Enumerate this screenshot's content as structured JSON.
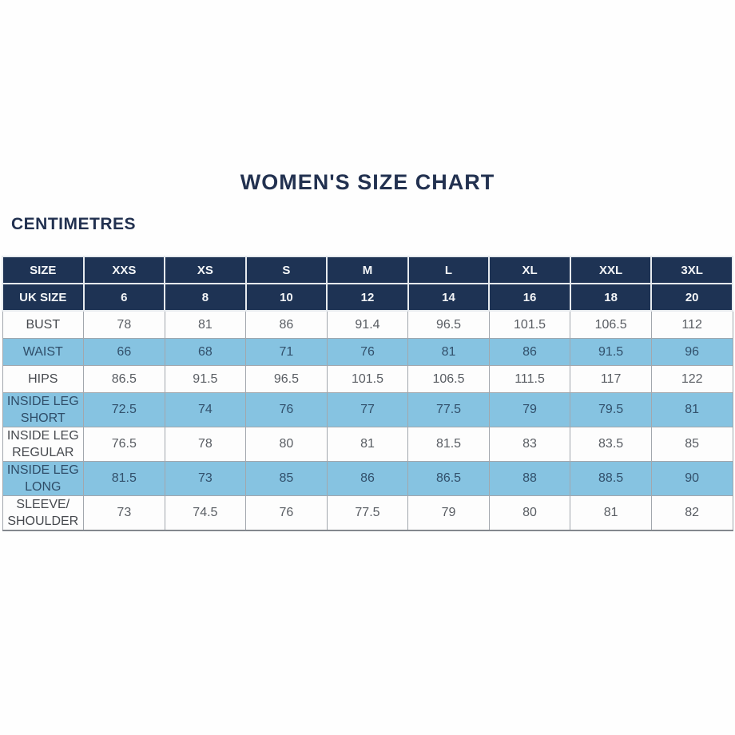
{
  "page": {
    "title": "WOMEN'S SIZE CHART",
    "unit_label": "CENTIMETRES"
  },
  "colors": {
    "header_navy": "#1e3354",
    "row_blue": "#86c3e1",
    "row_white": "#fdfdfd",
    "title_navy": "#223150",
    "border_gray": "#a2a7ad"
  },
  "chart_data": {
    "type": "table",
    "title": "WOMEN'S SIZE CHART",
    "unit": "CENTIMETRES",
    "columns": [
      "SIZE",
      "XXS",
      "XS",
      "S",
      "M",
      "L",
      "XL",
      "XXL",
      "3XL"
    ],
    "header_rows": [
      {
        "label": "SIZE",
        "values": [
          "XXS",
          "XS",
          "S",
          "M",
          "L",
          "XL",
          "XXL",
          "3XL"
        ]
      },
      {
        "label": "UK SIZE",
        "values": [
          "6",
          "8",
          "10",
          "12",
          "14",
          "16",
          "18",
          "20"
        ]
      }
    ],
    "rows": [
      {
        "label": "BUST",
        "shaded": false,
        "values": [
          "78",
          "81",
          "86",
          "91.4",
          "96.5",
          "101.5",
          "106.5",
          "112"
        ]
      },
      {
        "label": "WAIST",
        "shaded": true,
        "values": [
          "66",
          "68",
          "71",
          "76",
          "81",
          "86",
          "91.5",
          "96"
        ]
      },
      {
        "label": "HIPS",
        "shaded": false,
        "values": [
          "86.5",
          "91.5",
          "96.5",
          "101.5",
          "106.5",
          "111.5",
          "117",
          "122"
        ]
      },
      {
        "label": "INSIDE LEG\nSHORT",
        "shaded": true,
        "values": [
          "72.5",
          "74",
          "76",
          "77",
          "77.5",
          "79",
          "79.5",
          "81"
        ]
      },
      {
        "label": "INSIDE LEG\nREGULAR",
        "shaded": false,
        "values": [
          "76.5",
          "78",
          "80",
          "81",
          "81.5",
          "83",
          "83.5",
          "85"
        ]
      },
      {
        "label": "INSIDE LEG\nLONG",
        "shaded": true,
        "values": [
          "81.5",
          "73",
          "85",
          "86",
          "86.5",
          "88",
          "88.5",
          "90"
        ]
      },
      {
        "label": "SLEEVE/\nSHOULDER",
        "shaded": false,
        "values": [
          "73",
          "74.5",
          "76",
          "77.5",
          "79",
          "80",
          "81",
          "82"
        ]
      }
    ]
  }
}
